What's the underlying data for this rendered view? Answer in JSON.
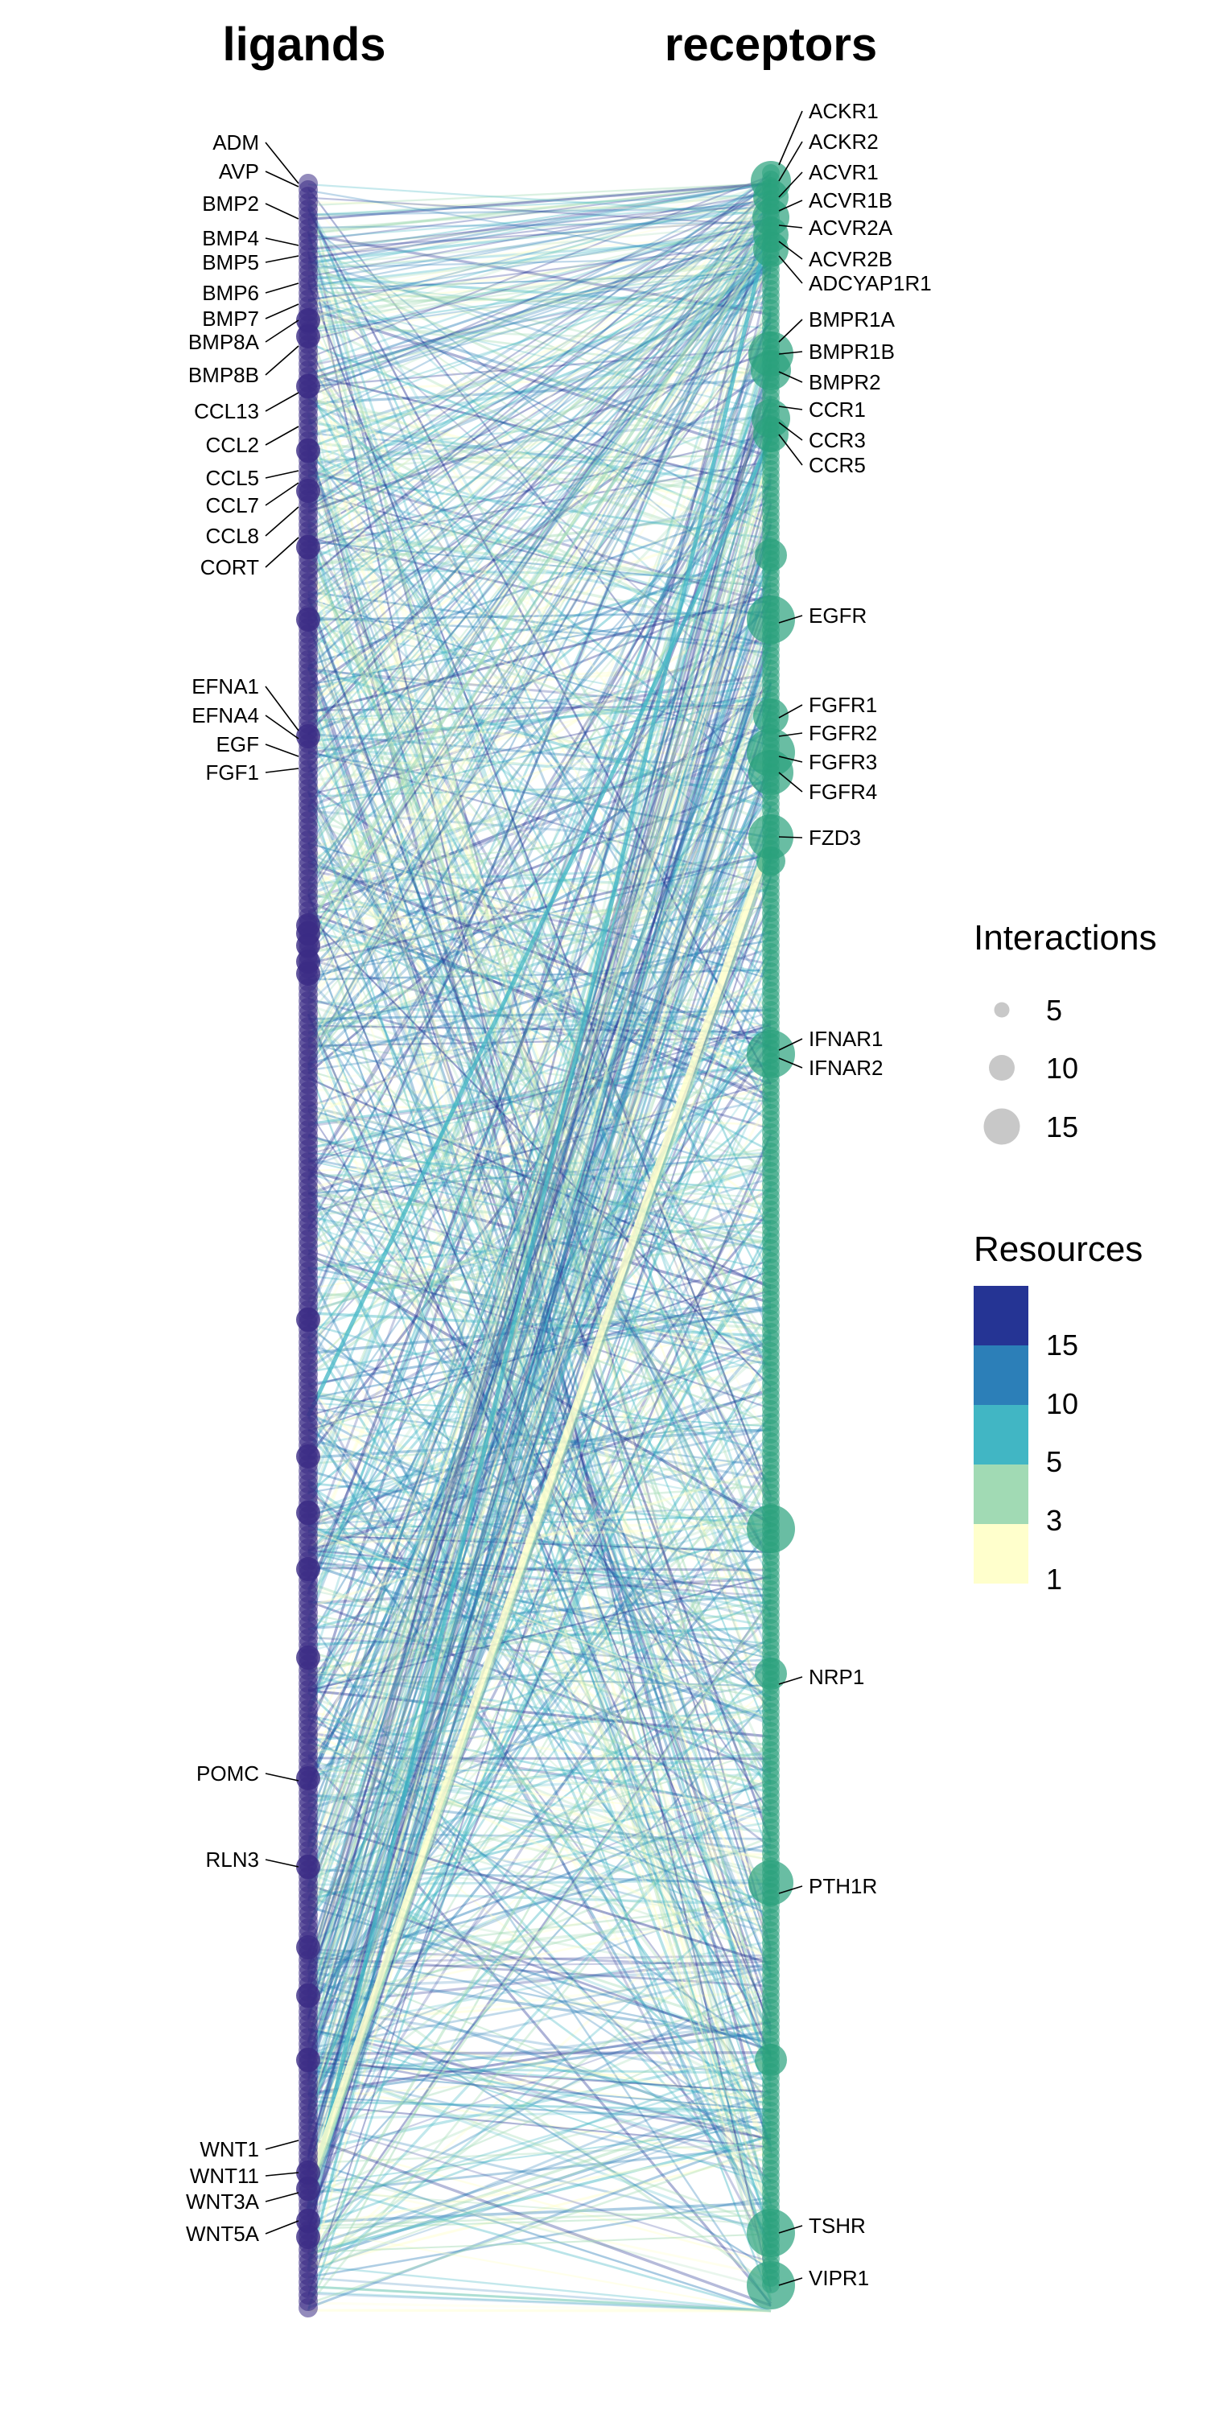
{
  "titles": {
    "left": "ligands",
    "right": "receptors"
  },
  "colors": {
    "ligand_node": "#3b2c85",
    "receptor_node": "#2aa17c",
    "legend_node": "#c8c8c8",
    "resources_scale": [
      "#ffffcc",
      "#a1dab4",
      "#41b6c4",
      "#2c7fb8",
      "#253494"
    ]
  },
  "legend": {
    "interactions_title": "Interactions",
    "interactions": [
      {
        "label": "5",
        "value": 5
      },
      {
        "label": "10",
        "value": 10
      },
      {
        "label": "15",
        "value": 15
      }
    ],
    "resources_title": "Resources",
    "resources_labels": [
      "15",
      "10",
      "5",
      "3",
      "1"
    ]
  },
  "ligands": [
    "ADM",
    "AVP",
    "BMP2",
    "BMP4",
    "BMP5",
    "BMP6",
    "BMP7",
    "BMP8A",
    "BMP8B",
    "CCL13",
    "CCL2",
    "CCL5",
    "CCL7",
    "CCL8",
    "CORT",
    "EFNA1",
    "EFNA4",
    "EGF",
    "FGF1",
    "POMC",
    "RLN3",
    "WNT1",
    "WNT11",
    "WNT3A",
    "WNT5A"
  ],
  "receptors": [
    "ACKR1",
    "ACKR2",
    "ACVR1",
    "ACVR1B",
    "ACVR2A",
    "ACVR2B",
    "ADCYAP1R1",
    "BMPR1A",
    "BMPR1B",
    "BMPR2",
    "CCR1",
    "CCR3",
    "CCR5",
    "EGFR",
    "FGFR1",
    "FGFR2",
    "FGFR3",
    "FGFR4",
    "FZD3",
    "IFNAR1",
    "IFNAR2",
    "NRP1",
    "PTH1R",
    "TSHR",
    "VIPR1"
  ]
}
